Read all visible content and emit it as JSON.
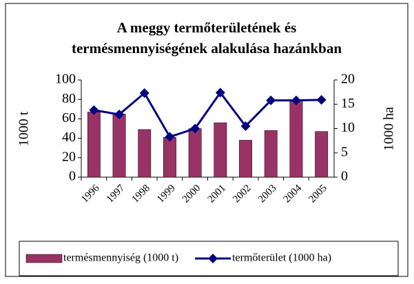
{
  "chart_data": {
    "type": "bar",
    "title": [
      "A meggy termőterületének és",
      "termésmennyiségének alakulása hazánkban"
    ],
    "categories": [
      "1996",
      "1997",
      "1998",
      "1999",
      "2000",
      "2001",
      "2002",
      "2003",
      "2004",
      "2005"
    ],
    "series": [
      {
        "name": "termésmennyiség (1000 t)",
        "color": "#993366",
        "values": [
          67,
          65,
          49,
          41,
          50,
          56,
          38,
          48,
          79,
          47
        ]
      },
      {
        "name": "termőterület (1000 ha)",
        "color": "#000080",
        "type": "line",
        "axis": "y2",
        "values": [
          13.8,
          12.9,
          17.3,
          8.3,
          10,
          17.4,
          10.5,
          15.8,
          15.8,
          15.9
        ]
      }
    ],
    "ylabel": "1000 t",
    "y2label": "1000 ha",
    "ylim": [
      0,
      100
    ],
    "yticks": [
      0,
      20,
      40,
      60,
      80,
      100
    ],
    "y2lim": [
      0,
      20
    ],
    "y2ticks": [
      0,
      5,
      10,
      15,
      20
    ],
    "grid": false,
    "legend": "bottom"
  }
}
